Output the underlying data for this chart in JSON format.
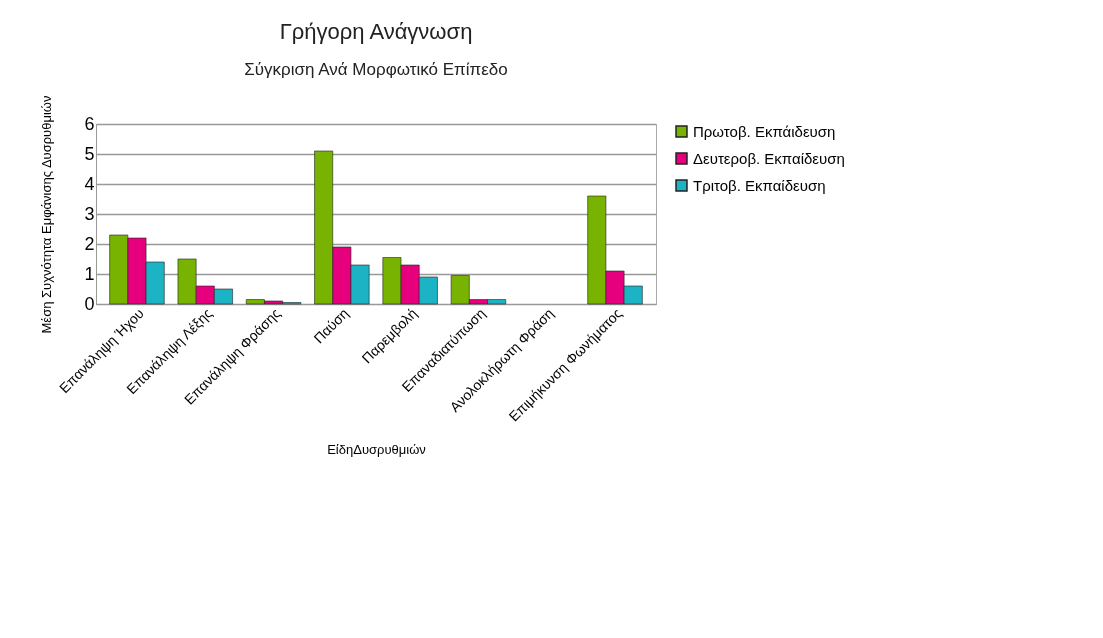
{
  "chart_data": {
    "type": "bar",
    "title": "Γρήγορη Ανάγνωση",
    "subtitle": "Σύγκριση Ανά Μορφωτικό Επίπεδο",
    "xlabel": "ΕίδηΔυσρυθμιών",
    "ylabel": "Μέση Συχνότητα Εμφάνισης Δυσρυθμιών",
    "categories": [
      "Επανάληψη Ήχου",
      "Επανάληψη Λέξης",
      "Επανάληψη Φράσης",
      "Παύση",
      "Παρεμβολή",
      "Επαναδιατύπωση",
      "Ανολοκλήρωτη Φράση",
      "Επιμήκυνση Φωνήματος"
    ],
    "series": [
      {
        "name": "Πρωτοβ. Εκπάιδευση",
        "color": "#77b300",
        "values": [
          2.3,
          1.5,
          0.15,
          5.1,
          1.55,
          0.95,
          null,
          3.6
        ]
      },
      {
        "name": "Δευτεροβ. Εκπαίδευση",
        "color": "#e6007e",
        "values": [
          2.2,
          0.6,
          0.1,
          1.9,
          1.3,
          0.15,
          null,
          1.1
        ]
      },
      {
        "name": "Τριτοβ. Εκπαίδευση",
        "color": "#1cb3c4",
        "values": [
          1.4,
          0.5,
          0.05,
          1.3,
          0.9,
          0.15,
          null,
          0.6
        ]
      }
    ],
    "ylim": [
      0,
      6
    ],
    "yticks": [
      0,
      1,
      2,
      3,
      4,
      5,
      6
    ],
    "grid": "y",
    "legend": "right"
  }
}
